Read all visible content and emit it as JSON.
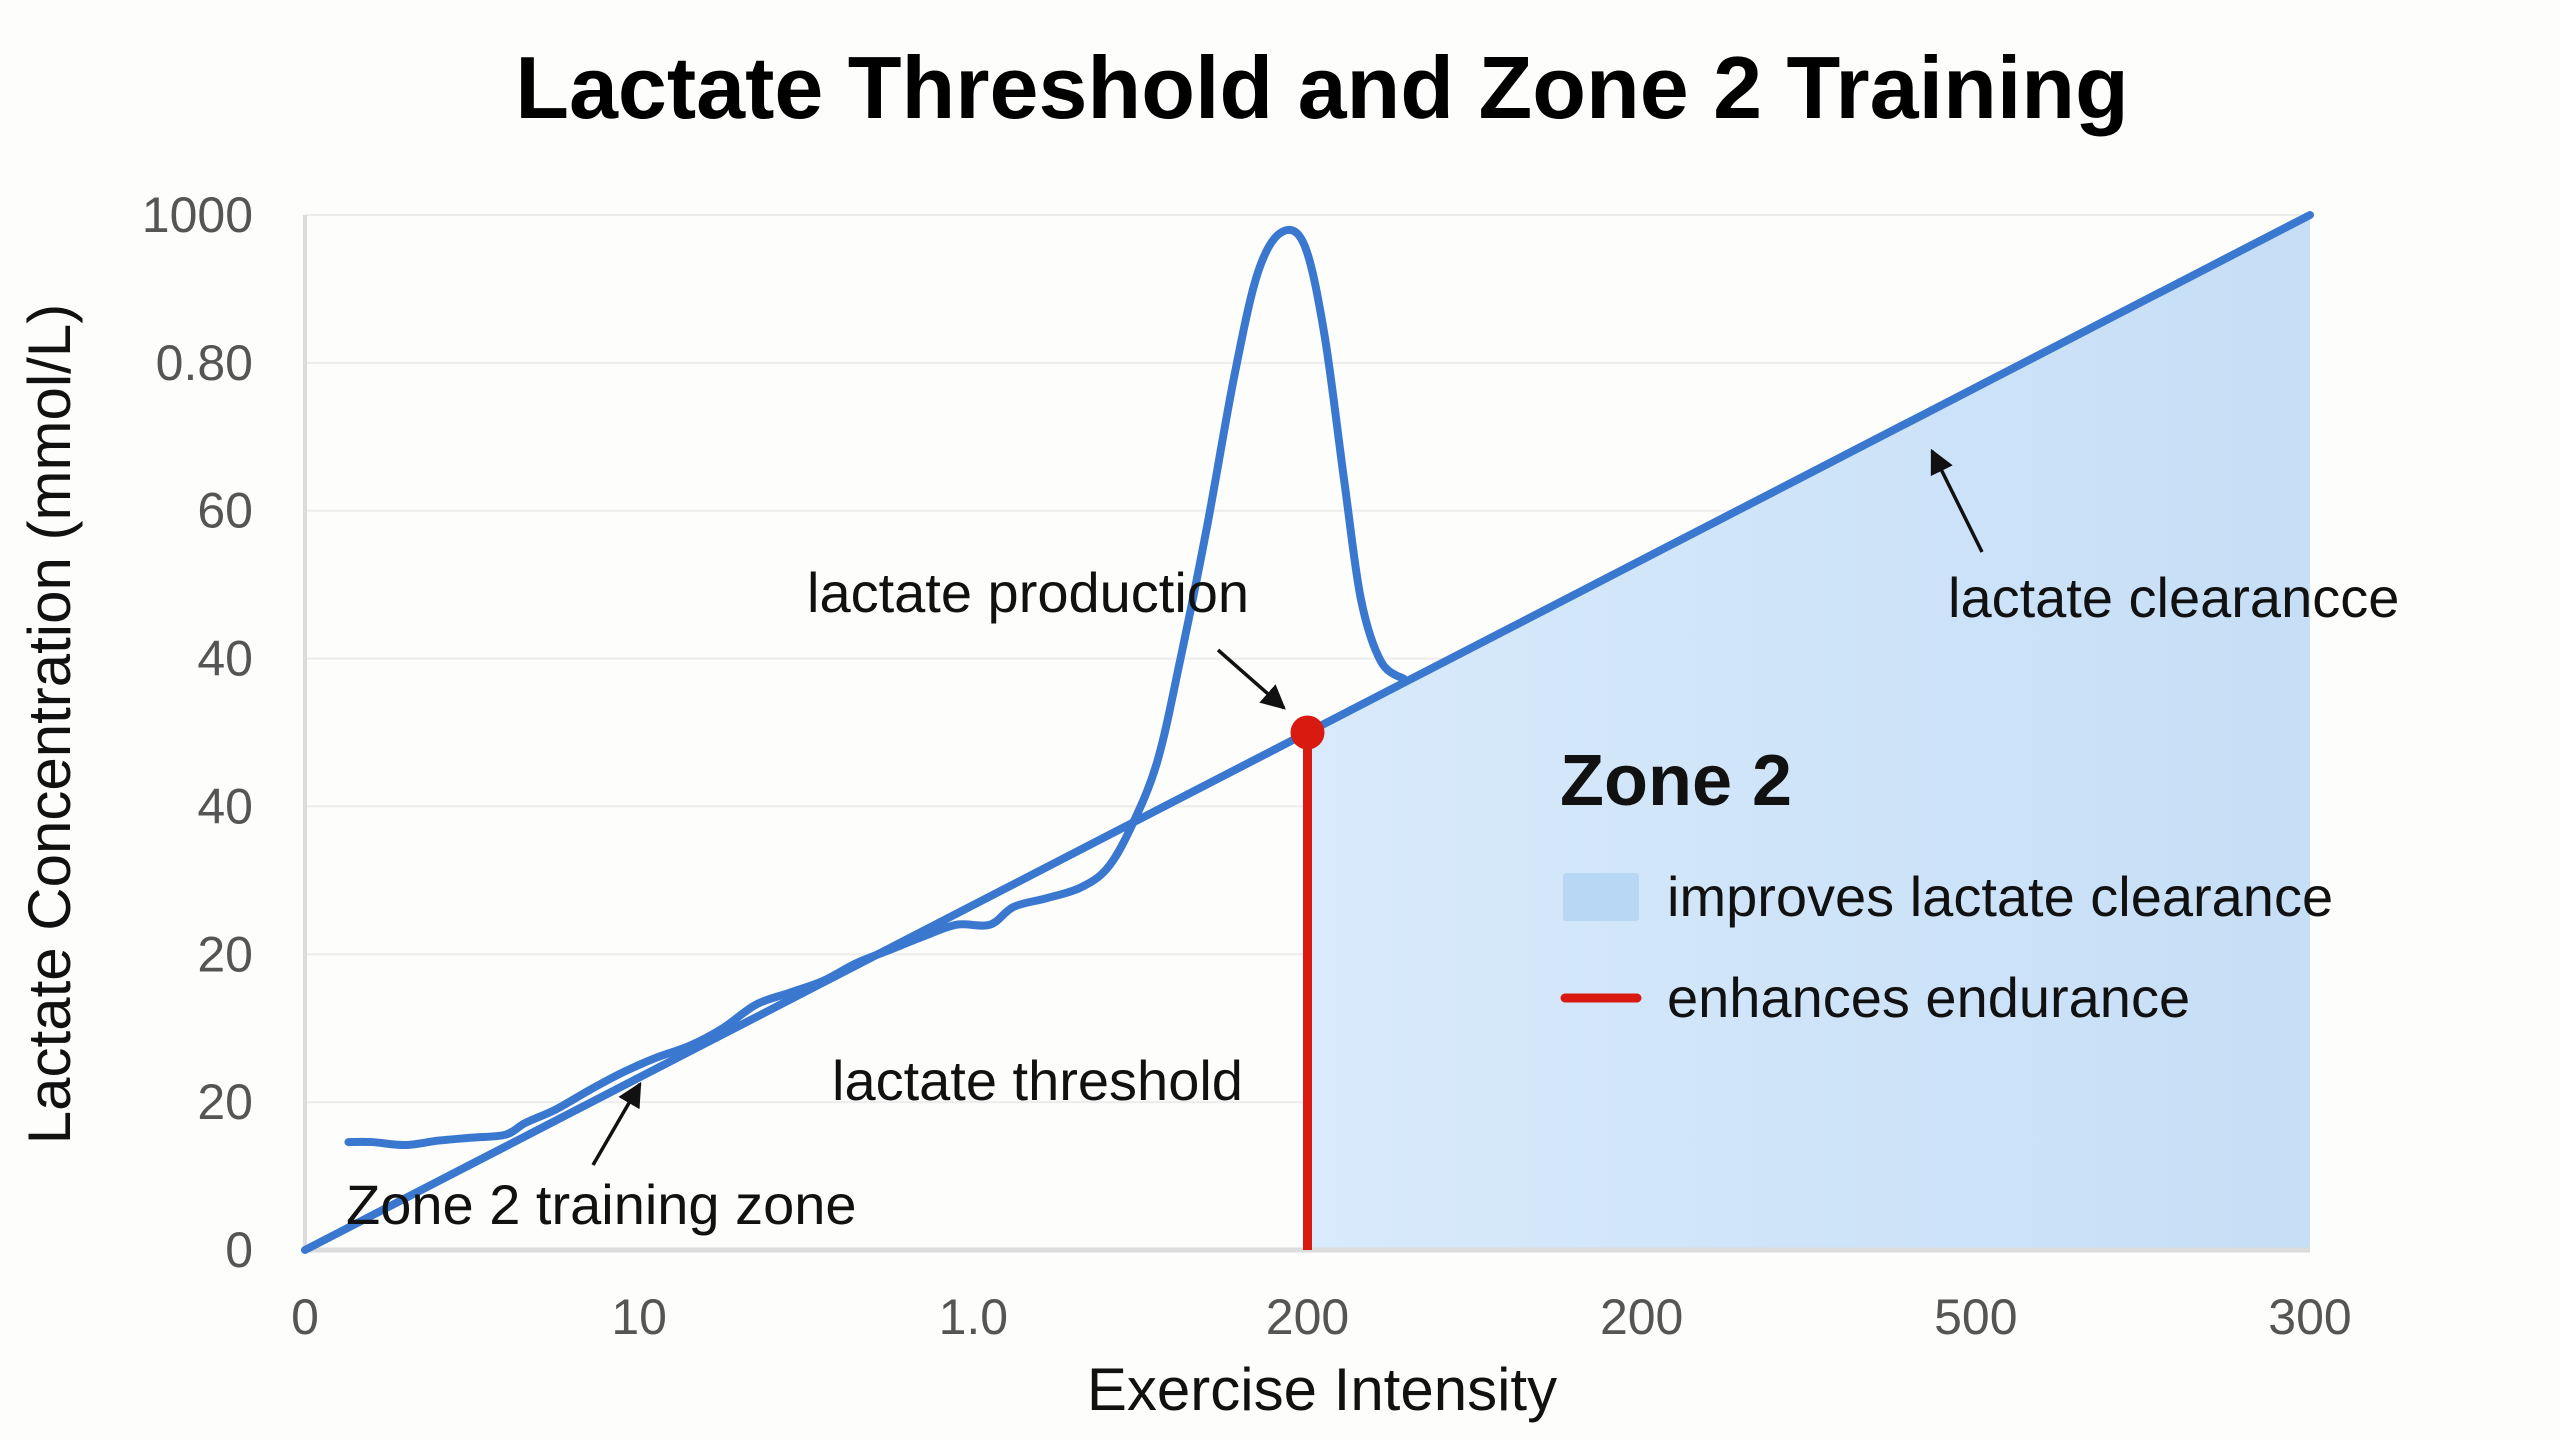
{
  "chart_data": {
    "type": "line",
    "title": "Lactate Threshold and Zone 2 Training",
    "xlabel": "Exercise Intensity",
    "ylabel": "Lactate Concentration (mmol/L)",
    "x_tick_labels": [
      "0",
      "10",
      "1.0",
      "200",
      "200",
      "500",
      "300"
    ],
    "y_tick_labels": [
      "0",
      "20",
      "20",
      "40",
      "40",
      "60",
      "0.80",
      "1000"
    ],
    "axis_units_note": "tick labels are non-linear/inconsistent; values below are expressed in tick-index units",
    "xlim": [
      0,
      6
    ],
    "ylim": [
      0,
      7
    ],
    "grid": "horizontal",
    "series": [
      {
        "name": "lactate clearance line",
        "color": "#3a78d0",
        "points": [
          [
            0,
            0
          ],
          [
            6,
            7
          ]
        ]
      },
      {
        "name": "lactate production curve",
        "color": "#3a78d0",
        "points": [
          [
            0.13,
            0.73
          ],
          [
            0.2,
            0.73
          ],
          [
            0.3,
            0.71
          ],
          [
            0.4,
            0.74
          ],
          [
            0.5,
            0.76
          ],
          [
            0.6,
            0.78
          ],
          [
            0.66,
            0.86
          ],
          [
            0.75,
            0.95
          ],
          [
            0.85,
            1.08
          ],
          [
            0.95,
            1.2
          ],
          [
            1.05,
            1.3
          ],
          [
            1.15,
            1.38
          ],
          [
            1.25,
            1.5
          ],
          [
            1.35,
            1.66
          ],
          [
            1.45,
            1.74
          ],
          [
            1.55,
            1.82
          ],
          [
            1.65,
            1.94
          ],
          [
            1.75,
            2.03
          ],
          [
            1.85,
            2.12
          ],
          [
            1.95,
            2.2
          ],
          [
            2.05,
            2.2
          ],
          [
            2.12,
            2.32
          ],
          [
            2.22,
            2.38
          ],
          [
            2.32,
            2.45
          ],
          [
            2.4,
            2.58
          ],
          [
            2.47,
            2.85
          ],
          [
            2.55,
            3.3
          ],
          [
            2.62,
            4.0
          ],
          [
            2.7,
            4.9
          ],
          [
            2.78,
            5.9
          ],
          [
            2.85,
            6.6
          ],
          [
            2.92,
            6.88
          ],
          [
            2.99,
            6.8
          ],
          [
            3.05,
            6.2
          ],
          [
            3.11,
            5.2
          ],
          [
            3.16,
            4.4
          ],
          [
            3.22,
            3.98
          ],
          [
            3.29,
            3.86
          ]
        ]
      }
    ],
    "threshold": {
      "x": 3.0,
      "y": 3.5,
      "color": "#d91a10"
    },
    "shaded_region": {
      "x_from": 3.0,
      "x_to": 6.0,
      "color": "#c9e1f7",
      "label": "Zone 2"
    },
    "annotations": [
      {
        "id": "production",
        "text": "lactate production"
      },
      {
        "id": "threshold",
        "text": "lactate threshold"
      },
      {
        "id": "zone2",
        "text": "Zone 2 training zone"
      },
      {
        "id": "clearance",
        "text": "lactate clearancce"
      }
    ],
    "legend": {
      "title": "Zone 2",
      "placement": "center-right",
      "items": [
        {
          "label": "improves lactate clearance",
          "marker": "square",
          "color": "#b8d7f5"
        },
        {
          "label": "enhances endurance",
          "marker": "line",
          "color": "#d91a10"
        }
      ]
    }
  }
}
